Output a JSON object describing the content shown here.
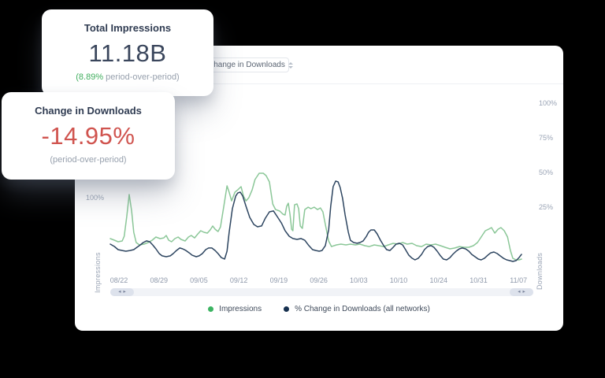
{
  "colors": {
    "accent_green": "#41ae5f",
    "negative_red": "#d0544f",
    "impressions_line": "#8bc798",
    "downloads_line": "#2d4560",
    "impressions_legend_dot": "#3cb462",
    "downloads_legend_dot": "#16304f"
  },
  "cards": {
    "impressions": {
      "title": "Total Impressions",
      "value": "11.18B",
      "change": "(8.89%",
      "change_suffix": " period-over-period)"
    },
    "downloads": {
      "title": "Change in Downloads",
      "value": "-14.95%",
      "subtext": "(period-over-period)"
    }
  },
  "panel": {
    "dropdown": {
      "value": "Change in Downloads"
    },
    "scrollbar": {
      "left_arrow": "◂",
      "right_arrow": "▸"
    }
  },
  "chart_data": {
    "type": "line",
    "title": "",
    "xlabel": "",
    "ylabel_left": "Impressions",
    "ylabel_right": "Downloads",
    "left_axis_ticks": [
      "100%"
    ],
    "right_axis_ticks": [
      "100%",
      "75%",
      "50%",
      "25%"
    ],
    "x_tick_labels": [
      "08/22",
      "08/29",
      "09/05",
      "09/12",
      "09/19",
      "09/26",
      "10/03",
      "10/10",
      "10/24",
      "10/31",
      "11/07"
    ],
    "legend_position": "bottom",
    "grid": false,
    "series": [
      {
        "name": "Impressions",
        "axis": "left",
        "unit": "% of left axis (estimated)",
        "color": "#8bc798",
        "legend_color": "#3cb462",
        "ylim": [
          0,
          127.7
        ],
        "points": [
          [
            0,
            44.7
          ],
          [
            1,
            42.6
          ],
          [
            1.9,
            40.4
          ],
          [
            2.9,
            41.5
          ],
          [
            3.4,
            47.9
          ],
          [
            4,
            74.5
          ],
          [
            4.6,
            104.3
          ],
          [
            5.2,
            81.9
          ],
          [
            5.7,
            53.2
          ],
          [
            6.3,
            39.4
          ],
          [
            7.1,
            36.2
          ],
          [
            8.2,
            37.2
          ],
          [
            9.2,
            39.4
          ],
          [
            10.2,
            42.6
          ],
          [
            11.1,
            46.8
          ],
          [
            12.1,
            44.7
          ],
          [
            13,
            45.7
          ],
          [
            13.6,
            48.9
          ],
          [
            14.2,
            42.6
          ],
          [
            14.9,
            40.4
          ],
          [
            15.7,
            44.7
          ],
          [
            16.5,
            46.8
          ],
          [
            17.2,
            43.6
          ],
          [
            18.2,
            41.5
          ],
          [
            19,
            46.8
          ],
          [
            19.7,
            48.9
          ],
          [
            20.5,
            45.7
          ],
          [
            21.3,
            51.1
          ],
          [
            22,
            55.3
          ],
          [
            22.8,
            53.2
          ],
          [
            23.6,
            52.1
          ],
          [
            24.3,
            56.4
          ],
          [
            24.9,
            61.7
          ],
          [
            25.5,
            57.4
          ],
          [
            26.2,
            54.3
          ],
          [
            26.8,
            60.6
          ],
          [
            27.6,
            88.3
          ],
          [
            28.4,
            116
          ],
          [
            28.9,
            107.4
          ],
          [
            29.5,
            95.7
          ],
          [
            30.3,
            107.4
          ],
          [
            31,
            110.6
          ],
          [
            31.8,
            114.9
          ],
          [
            32.4,
            102.1
          ],
          [
            33,
            95.7
          ],
          [
            33.7,
            100
          ],
          [
            34.5,
            110.6
          ],
          [
            35.2,
            124.5
          ],
          [
            36.2,
            133
          ],
          [
            37.2,
            133
          ],
          [
            37.9,
            129.8
          ],
          [
            38.7,
            121.3
          ],
          [
            39.5,
            91.5
          ],
          [
            40.2,
            84
          ],
          [
            41.2,
            81.9
          ],
          [
            42,
            77.7
          ],
          [
            42.5,
            76.6
          ],
          [
            42.9,
            88.3
          ],
          [
            43.3,
            92.6
          ],
          [
            43.7,
            77.7
          ],
          [
            44.1,
            57.4
          ],
          [
            44.4,
            55.3
          ],
          [
            44.8,
            90.4
          ],
          [
            45.4,
            91.5
          ],
          [
            45.8,
            85.1
          ],
          [
            46.2,
            61.7
          ],
          [
            46.7,
            58.5
          ],
          [
            47.3,
            84
          ],
          [
            48.1,
            87.2
          ],
          [
            48.8,
            85.1
          ],
          [
            49.6,
            87.2
          ],
          [
            50.4,
            84
          ],
          [
            51.1,
            86.2
          ],
          [
            51.7,
            80.9
          ],
          [
            52.3,
            63.8
          ],
          [
            53.1,
            41.5
          ],
          [
            53.8,
            34
          ],
          [
            55,
            36.2
          ],
          [
            56.1,
            37.2
          ],
          [
            57.3,
            36.2
          ],
          [
            58.4,
            37.2
          ],
          [
            59.6,
            36.2
          ],
          [
            60.7,
            37.2
          ],
          [
            61.9,
            35.1
          ],
          [
            63,
            34
          ],
          [
            64.2,
            36.2
          ],
          [
            65.3,
            35.1
          ],
          [
            66.5,
            34
          ],
          [
            67.6,
            36.2
          ],
          [
            68.8,
            38.3
          ],
          [
            69.9,
            37.2
          ],
          [
            71.1,
            39.4
          ],
          [
            72.2,
            37.2
          ],
          [
            73.4,
            38.3
          ],
          [
            74.5,
            35.1
          ],
          [
            75.7,
            34
          ],
          [
            76.8,
            37.2
          ],
          [
            78,
            36.2
          ],
          [
            79.1,
            37.2
          ],
          [
            80.3,
            35.1
          ],
          [
            81.4,
            33
          ],
          [
            82.6,
            30.9
          ],
          [
            83.7,
            31.9
          ],
          [
            84.9,
            34
          ],
          [
            86,
            33
          ],
          [
            87.2,
            33
          ],
          [
            88.3,
            35.1
          ],
          [
            89.3,
            39.4
          ],
          [
            90.2,
            46.8
          ],
          [
            91.2,
            55.3
          ],
          [
            92,
            57.4
          ],
          [
            92.7,
            59.6
          ],
          [
            93.5,
            52.1
          ],
          [
            94.3,
            57.4
          ],
          [
            95,
            59.6
          ],
          [
            95.8,
            55.3
          ],
          [
            96.6,
            46.8
          ],
          [
            97.3,
            28.7
          ],
          [
            97.9,
            18.1
          ],
          [
            98.7,
            16
          ],
          [
            99.4,
            16
          ],
          [
            100,
            17
          ]
        ]
      },
      {
        "name": "% Change in Downloads (all networks)",
        "axis": "right",
        "unit": "%",
        "color": "#2d4560",
        "legend_color": "#16304f",
        "ylim": [
          -21.6,
          46.6
        ],
        "points": [
          [
            0,
            -1.7
          ],
          [
            1,
            -3.4
          ],
          [
            1.9,
            -5.7
          ],
          [
            2.9,
            -6.3
          ],
          [
            3.8,
            -6.8
          ],
          [
            4.8,
            -6.3
          ],
          [
            5.7,
            -5.7
          ],
          [
            6.5,
            -4
          ],
          [
            7.3,
            -2.3
          ],
          [
            8,
            -0.6
          ],
          [
            8.8,
            0.6
          ],
          [
            9.6,
            0
          ],
          [
            10.3,
            -2.3
          ],
          [
            11.1,
            -5.1
          ],
          [
            11.9,
            -8.5
          ],
          [
            12.6,
            -10.2
          ],
          [
            13.6,
            -10.8
          ],
          [
            14.6,
            -10.2
          ],
          [
            15.3,
            -8.5
          ],
          [
            16.1,
            -6.3
          ],
          [
            16.9,
            -4.5
          ],
          [
            17.6,
            -5.1
          ],
          [
            18.4,
            -6.3
          ],
          [
            19.2,
            -8
          ],
          [
            19.9,
            -9.7
          ],
          [
            20.9,
            -10.8
          ],
          [
            21.6,
            -10.2
          ],
          [
            22.4,
            -8.5
          ],
          [
            23.2,
            -5.7
          ],
          [
            23.9,
            -4.5
          ],
          [
            24.7,
            -4.5
          ],
          [
            25.5,
            -6.3
          ],
          [
            26.2,
            -8.5
          ],
          [
            27,
            -11.4
          ],
          [
            27.8,
            -12.5
          ],
          [
            28.4,
            -6.8
          ],
          [
            28.9,
            6.8
          ],
          [
            29.7,
            23.9
          ],
          [
            30.5,
            33
          ],
          [
            31,
            35.2
          ],
          [
            31.6,
            35.8
          ],
          [
            32.2,
            33
          ],
          [
            33,
            25.6
          ],
          [
            33.9,
            17.6
          ],
          [
            34.9,
            12.5
          ],
          [
            35.8,
            10.8
          ],
          [
            36.8,
            11.4
          ],
          [
            37.7,
            17
          ],
          [
            38.7,
            21.6
          ],
          [
            39.7,
            22.2
          ],
          [
            40.6,
            18.2
          ],
          [
            41.6,
            13.6
          ],
          [
            42.5,
            8
          ],
          [
            43.5,
            4
          ],
          [
            44.4,
            2.3
          ],
          [
            45.4,
            1.7
          ],
          [
            46.4,
            2.3
          ],
          [
            47.3,
            1.1
          ],
          [
            48.3,
            -2.8
          ],
          [
            49.2,
            -5.7
          ],
          [
            50,
            -6.3
          ],
          [
            50.8,
            -6.8
          ],
          [
            51.5,
            -6.3
          ],
          [
            52.3,
            -2.8
          ],
          [
            53.1,
            8.5
          ],
          [
            53.6,
            25.6
          ],
          [
            54.2,
            39.8
          ],
          [
            54.8,
            43.8
          ],
          [
            55.4,
            43.2
          ],
          [
            55.9,
            39.2
          ],
          [
            56.5,
            31.3
          ],
          [
            57.1,
            19.3
          ],
          [
            57.9,
            6.8
          ],
          [
            58.4,
            1.1
          ],
          [
            59.2,
            -0.6
          ],
          [
            60,
            -1.1
          ],
          [
            60.7,
            -0.6
          ],
          [
            61.5,
            0.6
          ],
          [
            62.3,
            4
          ],
          [
            62.8,
            6.8
          ],
          [
            63.4,
            8.5
          ],
          [
            64.2,
            8.5
          ],
          [
            64.9,
            5.7
          ],
          [
            65.7,
            1.1
          ],
          [
            66.5,
            -2.8
          ],
          [
            67.2,
            -5.7
          ],
          [
            68,
            -6.3
          ],
          [
            68.8,
            -4
          ],
          [
            69.5,
            -1.7
          ],
          [
            70.3,
            -1.1
          ],
          [
            71.1,
            -2.3
          ],
          [
            71.8,
            -5.7
          ],
          [
            72.6,
            -9.7
          ],
          [
            73.4,
            -11.9
          ],
          [
            74.1,
            -13.1
          ],
          [
            74.9,
            -11.9
          ],
          [
            75.7,
            -9.1
          ],
          [
            76.4,
            -5.7
          ],
          [
            77.2,
            -3.4
          ],
          [
            78,
            -2.8
          ],
          [
            78.7,
            -4
          ],
          [
            79.5,
            -6.8
          ],
          [
            80.3,
            -10.2
          ],
          [
            81,
            -12.5
          ],
          [
            81.8,
            -13.1
          ],
          [
            82.6,
            -11.4
          ],
          [
            83.3,
            -9.1
          ],
          [
            84.1,
            -6.8
          ],
          [
            84.9,
            -5.1
          ],
          [
            85.6,
            -4.5
          ],
          [
            86.4,
            -5.1
          ],
          [
            87.2,
            -6.8
          ],
          [
            87.9,
            -9.1
          ],
          [
            88.7,
            -10.8
          ],
          [
            89.5,
            -12.5
          ],
          [
            90.2,
            -13.1
          ],
          [
            91,
            -11.9
          ],
          [
            91.8,
            -9.7
          ],
          [
            92.5,
            -8
          ],
          [
            93.3,
            -7.4
          ],
          [
            94.1,
            -8.5
          ],
          [
            94.8,
            -10.2
          ],
          [
            95.6,
            -11.9
          ],
          [
            96.4,
            -13.1
          ],
          [
            97.1,
            -13.6
          ],
          [
            97.9,
            -14.2
          ],
          [
            98.7,
            -13.6
          ],
          [
            99.4,
            -11.4
          ],
          [
            100,
            -9.1
          ]
        ]
      }
    ]
  }
}
